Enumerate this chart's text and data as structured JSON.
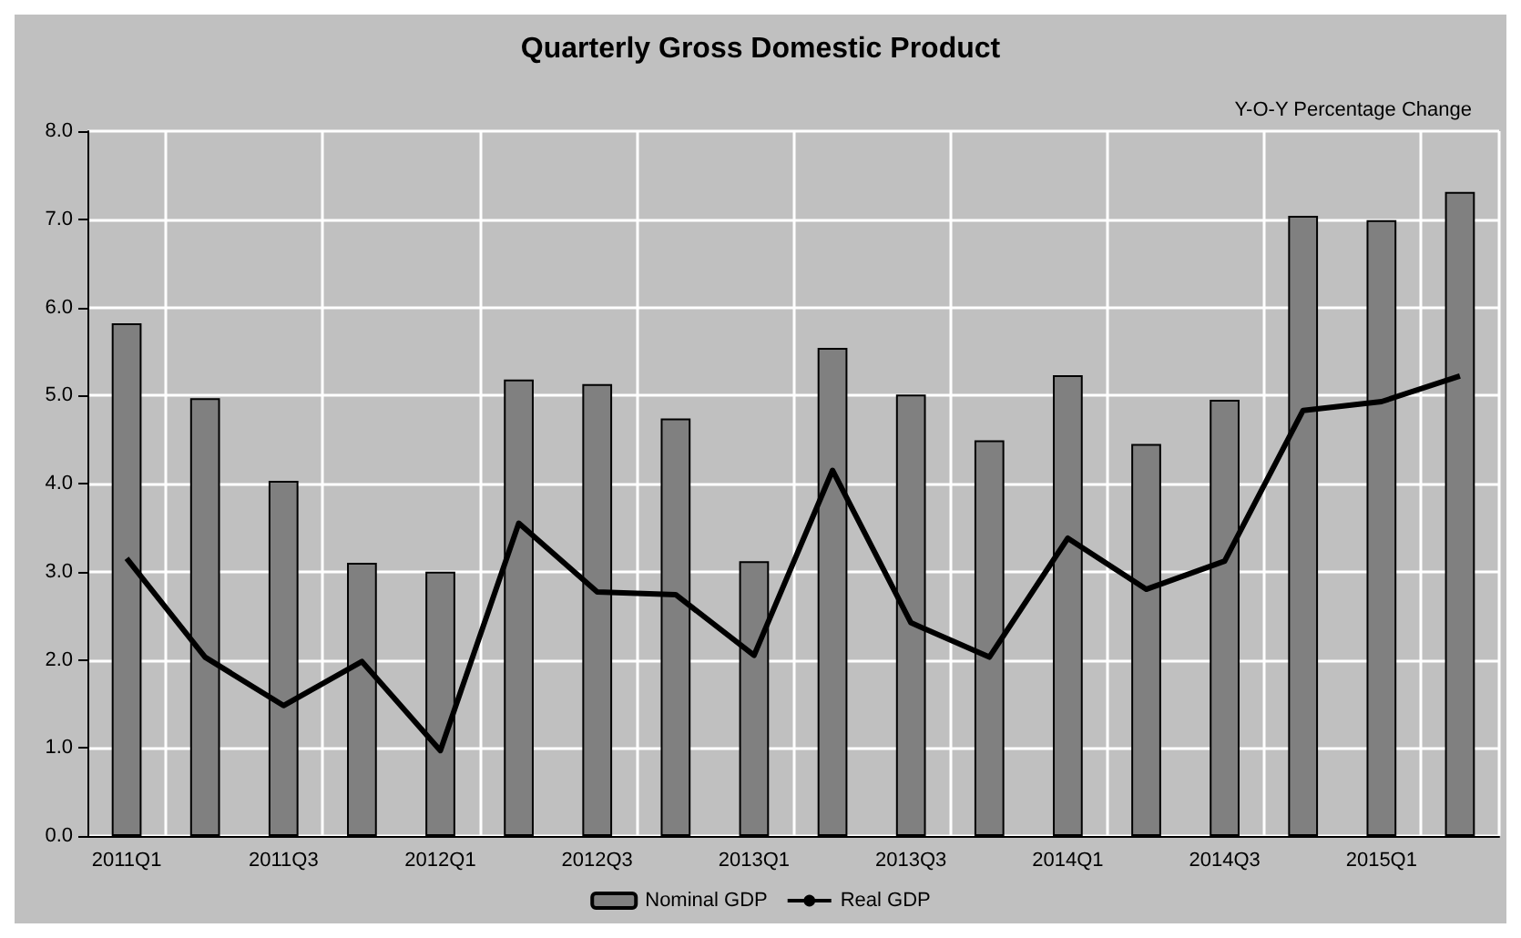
{
  "chart_data": {
    "type": "bar",
    "title": "Quarterly Gross Domestic Product",
    "ylabel": "Y-O-Y Percentage Change",
    "categories": [
      "2011Q1",
      null,
      "2011Q3",
      null,
      "2012Q1",
      null,
      "2012Q3",
      null,
      "2013Q1",
      null,
      "2013Q3",
      null,
      "2014Q1",
      null,
      "2014Q3",
      null,
      "2015Q1",
      null
    ],
    "series": [
      {
        "name": "Nominal GDP",
        "color": "#808080",
        "values": [
          5.82,
          4.97,
          4.03,
          3.1,
          3.0,
          5.18,
          5.13,
          4.74,
          3.12,
          5.54,
          5.01,
          4.49,
          5.23,
          4.45,
          4.95,
          7.04,
          6.99,
          7.31
        ]
      },
      {
        "name": "Real GDP",
        "type": "line",
        "color": "#000000",
        "values": [
          3.15,
          2.03,
          1.48,
          1.98,
          0.97,
          3.55,
          2.77,
          2.74,
          2.05,
          4.15,
          2.42,
          2.03,
          3.38,
          2.8,
          3.12,
          4.83,
          4.93,
          5.22
        ]
      }
    ],
    "ylim": [
      0,
      8
    ],
    "yticks": [
      {
        "value": 0,
        "label": "0.0"
      },
      {
        "value": 1,
        "label": "1.0"
      },
      {
        "value": 2,
        "label": "2.0"
      },
      {
        "value": 3,
        "label": "3.0"
      },
      {
        "value": 4,
        "label": "4.0"
      },
      {
        "value": 5,
        "label": "5.0"
      },
      {
        "value": 6,
        "label": "6.0"
      },
      {
        "value": 7,
        "label": "7.0"
      },
      {
        "value": 8,
        "label": "8.0"
      }
    ],
    "grid": true,
    "legend": "bottom",
    "marker": "none",
    "line_style": "solid"
  }
}
